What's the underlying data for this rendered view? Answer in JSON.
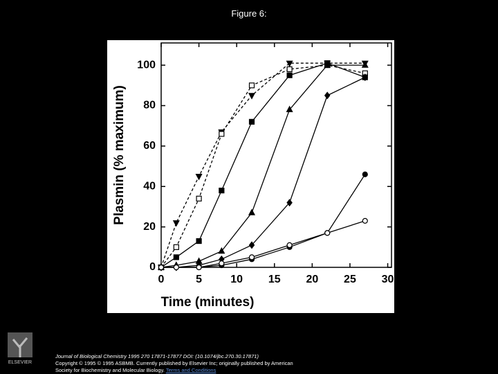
{
  "header": {
    "title": "Figure 6:"
  },
  "chart_data": {
    "type": "line",
    "xlabel": "Time (minutes)",
    "ylabel": "Plasmin (% maximum)",
    "x": [
      0,
      2,
      5,
      8,
      12,
      17,
      22,
      27
    ],
    "xlim": [
      0,
      30.5
    ],
    "xticks": [
      0,
      5,
      10,
      15,
      20,
      25,
      30
    ],
    "ylim": [
      0,
      111
    ],
    "yticks": [
      0,
      20,
      40,
      60,
      80,
      100
    ],
    "series": [
      {
        "color": "#000000",
        "marker": "triangle-down",
        "filled": true,
        "dashed": true,
        "values": [
          0,
          22,
          45,
          67,
          85,
          101,
          101,
          101
        ]
      },
      {
        "color": "#000000",
        "marker": "square",
        "filled": false,
        "dashed": true,
        "values": [
          0,
          10,
          34,
          66,
          90,
          98,
          100,
          96
        ]
      },
      {
        "color": "#000000",
        "marker": "square",
        "filled": true,
        "dashed": false,
        "values": [
          0,
          5,
          13,
          38,
          72,
          95,
          101,
          94
        ]
      },
      {
        "color": "#000000",
        "marker": "triangle-up",
        "filled": true,
        "dashed": false,
        "values": [
          0,
          1,
          3,
          8,
          27,
          78,
          100,
          100
        ]
      },
      {
        "color": "#000000",
        "marker": "diamond",
        "filled": true,
        "dashed": false,
        "values": [
          0,
          0,
          1,
          4,
          11,
          32,
          85,
          94
        ]
      },
      {
        "color": "#000000",
        "marker": "circle",
        "filled": true,
        "dashed": false,
        "values": [
          0,
          0,
          0,
          1,
          4,
          10,
          17,
          46
        ]
      },
      {
        "color": "#000000",
        "marker": "circle",
        "filled": false,
        "dashed": false,
        "values": [
          0,
          0,
          0,
          2,
          5,
          11,
          17,
          23
        ]
      }
    ]
  },
  "logo": "ELSEVIER",
  "footer": {
    "journal": "Journal of Biological Chemistry 1995 270 17871-17877 DOI: (10.1074/jbc.270.30.17871)",
    "copyright": "Copyright © 1995 © 1995 ASBMB. Currently published by Elsevier Inc; originally published by American",
    "society": "Society for Biochemistry and Molecular Biology.",
    "link": "Terms and Conditions"
  }
}
